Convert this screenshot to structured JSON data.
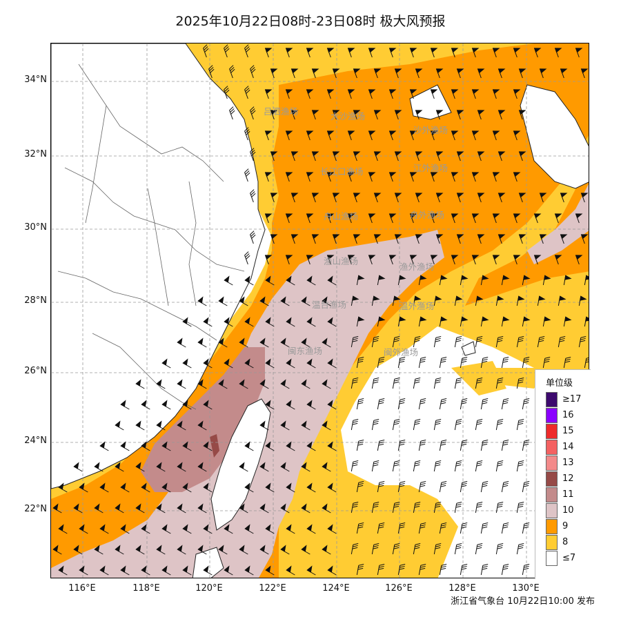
{
  "title": "2025年10月22日08时-23日08时 极大风预报",
  "footer": "浙江省气象台 10月22日10:00 发布",
  "lat_labels": [
    "34°N",
    "32°N",
    "30°N",
    "28°N",
    "26°N",
    "24°N",
    "22°N"
  ],
  "lon_labels": [
    "116°E",
    "118°E",
    "120°E",
    "122°E",
    "124°E",
    "126°E",
    "128°E",
    "130°E"
  ],
  "fishing_grounds": [
    {
      "name": "吕泗渔场"
    },
    {
      "name": "大沙渔场"
    },
    {
      "name": "沙外渔场"
    },
    {
      "name": "长江口渔场"
    },
    {
      "name": "江外渔场"
    },
    {
      "name": "舟山渔场"
    },
    {
      "name": "舟外渔场"
    },
    {
      "name": "渔山渔场"
    },
    {
      "name": "渔外渔场"
    },
    {
      "name": "温台渔场"
    },
    {
      "name": "温外渔场"
    },
    {
      "name": "闽东渔场"
    },
    {
      "name": "闽外渔场"
    }
  ],
  "legend": {
    "title": "单位级",
    "items": [
      {
        "label": "≥17",
        "color": "#3d0a6e"
      },
      {
        "label": "16",
        "color": "#8a00ff"
      },
      {
        "label": "15",
        "color": "#ee2a2a"
      },
      {
        "label": "14",
        "color": "#f46161"
      },
      {
        "label": "13",
        "color": "#f38a8a"
      },
      {
        "label": "12",
        "color": "#964a47"
      },
      {
        "label": "11",
        "color": "#c38b8b"
      },
      {
        "label": "10",
        "color": "#dec4c6"
      },
      {
        "label": "9",
        "color": "#ff9a00"
      },
      {
        "label": "8",
        "color": "#ffcc33"
      },
      {
        "label": "≤7",
        "color": "#ffffff"
      }
    ]
  }
}
